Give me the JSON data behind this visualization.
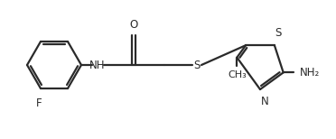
{
  "bg_color": "#ffffff",
  "line_color": "#2a2a2a",
  "line_width": 1.6,
  "font_size": 8.5,
  "figsize": [
    3.72,
    1.54
  ],
  "dpi": 100,
  "xlim": [
    0,
    3.72
  ],
  "ylim": [
    0,
    1.54
  ]
}
